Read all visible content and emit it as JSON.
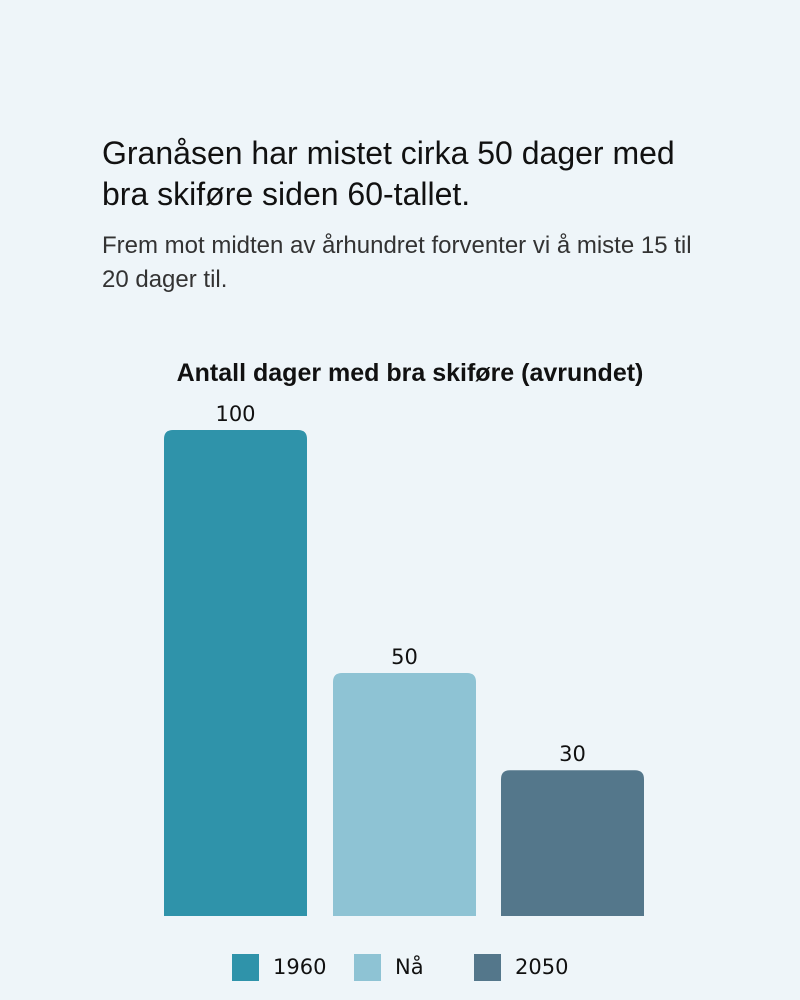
{
  "headline": "Granåsen har mistet cirka 50 dager med bra skiføre siden 60-tallet.",
  "subheadline": "Frem mot midten av århundret forventer vi å miste 15 til 20 dager til.",
  "chart_data": {
    "type": "bar",
    "title": "Antall dager med bra skiføre (avrundet)",
    "categories": [
      "1960",
      "Nå",
      "2050"
    ],
    "values": [
      100,
      50,
      30
    ],
    "colors": [
      "#2f93aa",
      "#8ec3d4",
      "#54778b"
    ],
    "data_labels": [
      "100",
      "50",
      "30"
    ],
    "legend": {
      "placement": "bottom",
      "entries": [
        "1960",
        "Nå",
        "2050"
      ]
    },
    "ylim": [
      0,
      100
    ],
    "grid": false,
    "xlabel": "",
    "ylabel": ""
  }
}
